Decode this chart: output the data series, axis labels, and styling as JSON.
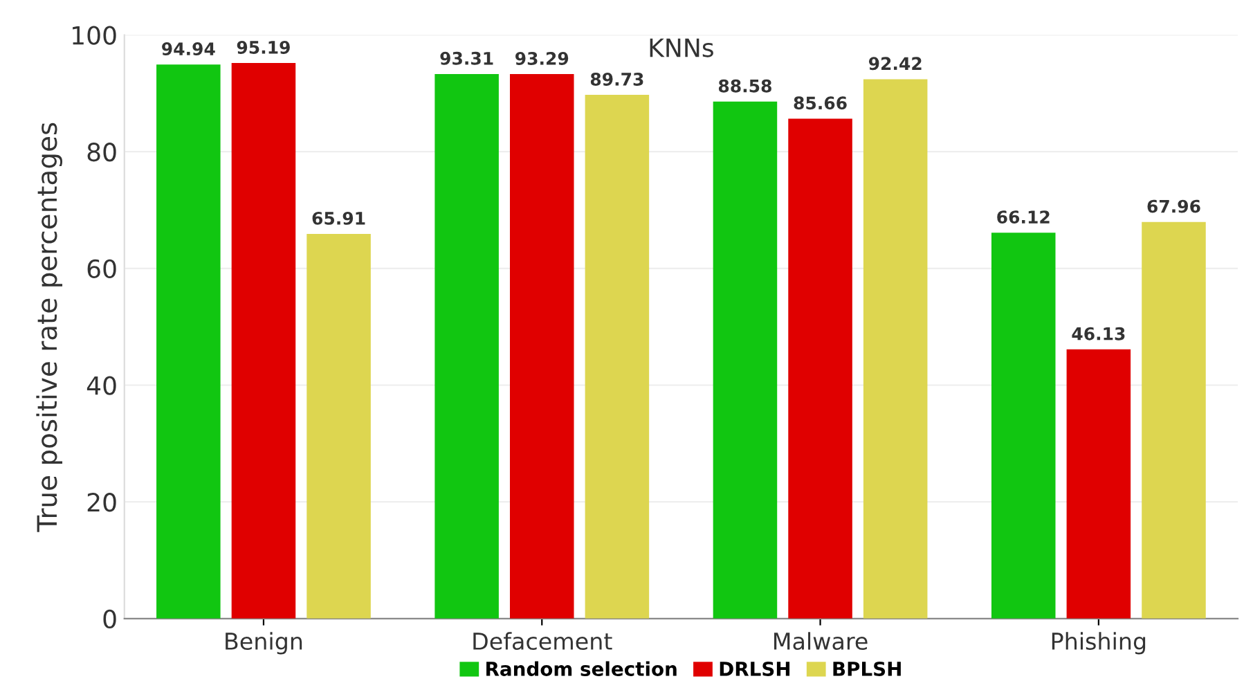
{
  "chart_data": {
    "type": "bar",
    "title": "KNNs",
    "ylabel": "True positive rate percentages",
    "categories": [
      "Benign",
      "Defacement",
      "Malware",
      "Phishing"
    ],
    "series": [
      {
        "name": "Random selection",
        "color": "#11c611",
        "values": [
          94.94,
          93.31,
          88.58,
          66.12
        ]
      },
      {
        "name": "DRLSH",
        "color": "#e00000",
        "values": [
          95.19,
          93.29,
          85.66,
          46.13
        ]
      },
      {
        "name": "BPLSH",
        "color": "#ddd650",
        "values": [
          65.91,
          89.73,
          92.42,
          67.96
        ]
      }
    ],
    "ylim": [
      0,
      100
    ],
    "yticks": [
      0,
      20,
      40,
      60,
      80,
      100
    ],
    "grid": "y",
    "legend": "bottom",
    "data_labels": true
  }
}
